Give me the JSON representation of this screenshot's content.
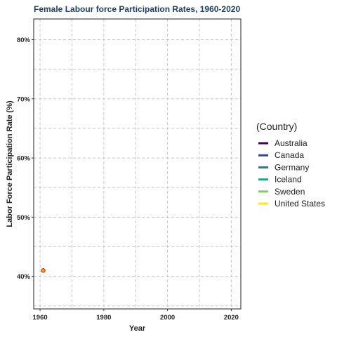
{
  "chart_data": {
    "type": "line",
    "title": "Female Labour force Participation Rates, 1960-2020",
    "xlabel": "Year",
    "ylabel": "Labor Force Participation Rate (%)",
    "xlim": [
      1958,
      2023
    ],
    "ylim": [
      34.5,
      83.5
    ],
    "x_ticks": [
      1960,
      1980,
      2000,
      2020
    ],
    "y_ticks": [
      40,
      50,
      60,
      70,
      80
    ],
    "y_tick_labels": [
      "40%",
      "50%",
      "60%",
      "70%",
      "80%"
    ],
    "grid": true,
    "legend": {
      "title": "(Country)",
      "position": "right",
      "entries": [
        "Australia",
        "Canada",
        "Germany",
        "Iceland",
        "Sweden",
        "United States"
      ],
      "colors": [
        "#440154",
        "#414487",
        "#2a788e",
        "#22a884",
        "#7ad151",
        "#fde725"
      ]
    },
    "points": [
      {
        "x": 1961,
        "y": 41.0,
        "fill": "#f5a623",
        "stroke": "#c0392b"
      }
    ]
  }
}
